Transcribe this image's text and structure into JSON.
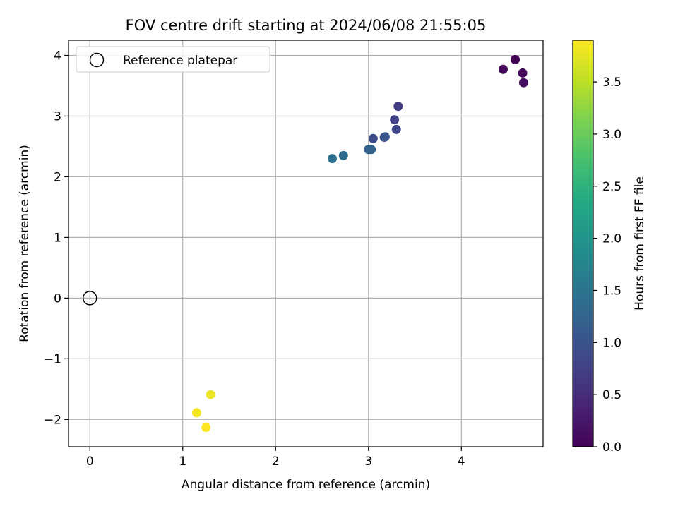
{
  "chart_data": {
    "type": "scatter",
    "title": "FOV centre drift starting at 2024/06/08 21:55:05",
    "xlabel": "Angular distance from reference (arcmin)",
    "ylabel": "Rotation from reference (arcmin)",
    "xlim": [
      -0.23,
      4.88
    ],
    "ylim": [
      -2.45,
      4.25
    ],
    "xticks": [
      0,
      1,
      2,
      3,
      4
    ],
    "xtick_labels": [
      "0",
      "1",
      "2",
      "3",
      "4"
    ],
    "yticks": [
      -2,
      -1,
      0,
      1,
      2,
      3,
      4
    ],
    "ytick_labels": [
      "−2",
      "−1",
      "0",
      "1",
      "2",
      "3",
      "4"
    ],
    "grid": true,
    "legend": {
      "placement": "top-left",
      "entries": [
        {
          "label": "Reference platepar",
          "marker": "hollow-circle"
        }
      ]
    },
    "reference_point": {
      "x": 0,
      "y": 0
    },
    "colorbar": {
      "label": "Hours from first FF file",
      "colormap": "viridis",
      "range": [
        0,
        3.9
      ],
      "ticks": [
        0,
        0.5,
        1,
        1.5,
        2,
        2.5,
        3,
        3.5
      ],
      "tick_labels": [
        "0.0",
        "0.5",
        "1.0",
        "1.5",
        "2.0",
        "2.5",
        "3.0",
        "3.5"
      ]
    },
    "points": [
      {
        "x": 4.58,
        "y": 3.93,
        "c": 0.0
      },
      {
        "x": 4.45,
        "y": 3.77,
        "c": 0.05
      },
      {
        "x": 4.66,
        "y": 3.71,
        "c": 0.1
      },
      {
        "x": 4.67,
        "y": 3.55,
        "c": 0.15
      },
      {
        "x": 3.32,
        "y": 3.16,
        "c": 0.7
      },
      {
        "x": 3.28,
        "y": 2.94,
        "c": 0.75
      },
      {
        "x": 3.3,
        "y": 2.78,
        "c": 0.8
      },
      {
        "x": 3.05,
        "y": 2.63,
        "c": 0.9
      },
      {
        "x": 3.18,
        "y": 2.66,
        "c": 1.0
      },
      {
        "x": 3.17,
        "y": 2.65,
        "c": 1.05
      },
      {
        "x": 3.0,
        "y": 2.45,
        "c": 1.2
      },
      {
        "x": 3.03,
        "y": 2.45,
        "c": 1.25
      },
      {
        "x": 2.73,
        "y": 2.35,
        "c": 1.35
      },
      {
        "x": 2.61,
        "y": 2.3,
        "c": 1.45
      },
      {
        "x": 1.3,
        "y": -1.59,
        "c": 3.8
      },
      {
        "x": 1.15,
        "y": -1.89,
        "c": 3.85
      },
      {
        "x": 1.25,
        "y": -2.13,
        "c": 3.9
      }
    ]
  }
}
